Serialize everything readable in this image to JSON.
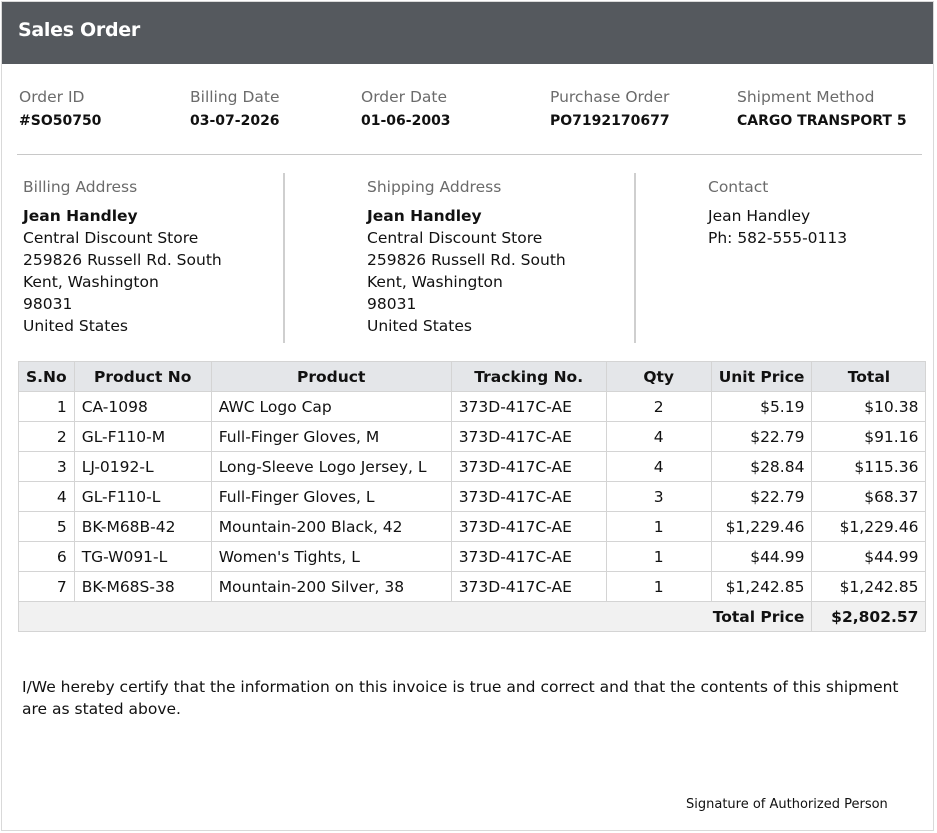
{
  "header": {
    "title": "Sales Order"
  },
  "order_info": [
    {
      "label": "Order ID",
      "value": "#SO50750"
    },
    {
      "label": "Billing Date",
      "value": "03-07-2026"
    },
    {
      "label": "Order Date",
      "value": "01-06-2003"
    },
    {
      "label": "Purchase Order",
      "value": "PO7192170677"
    },
    {
      "label": "Shipment Method",
      "value": "CARGO TRANSPORT 5"
    }
  ],
  "addresses": [
    {
      "label": "Billing Address",
      "lines": [
        "Jean Handley",
        "Central Discount Store",
        "259826 Russell Rd. South",
        "Kent, Washington",
        "98031",
        "United States"
      ]
    },
    {
      "label": "Shipping Address",
      "lines": [
        "Jean Handley",
        "Central Discount Store",
        "259826 Russell Rd. South",
        "Kent, Washington",
        "98031",
        "United States"
      ]
    },
    {
      "label": "Contact",
      "lines": [
        "Jean Handley",
        "Ph: 582-555-0113"
      ]
    }
  ],
  "table": {
    "columns": [
      "S.No",
      "Product No",
      "Product",
      "Tracking No.",
      "Qty",
      "Unit Price",
      "Total"
    ],
    "rows": [
      [
        "1",
        "CA-1098",
        "AWC Logo Cap",
        "373D-417C-AE",
        "2",
        "$5.19",
        "$10.38"
      ],
      [
        "2",
        "GL-F110-M",
        "Full-Finger Gloves, M",
        "373D-417C-AE",
        "4",
        "$22.79",
        "$91.16"
      ],
      [
        "3",
        "LJ-0192-L",
        "Long-Sleeve Logo Jersey, L",
        "373D-417C-AE",
        "4",
        "$28.84",
        "$115.36"
      ],
      [
        "4",
        "GL-F110-L",
        "Full-Finger Gloves, L",
        "373D-417C-AE",
        "3",
        "$22.79",
        "$68.37"
      ],
      [
        "5",
        "BK-M68B-42",
        "Mountain-200 Black, 42",
        "373D-417C-AE",
        "1",
        "$1,229.46",
        "$1,229.46"
      ],
      [
        "6",
        "TG-W091-L",
        "Women's Tights, L",
        "373D-417C-AE",
        "1",
        "$44.99",
        "$44.99"
      ],
      [
        "7",
        "BK-M68S-38",
        "Mountain-200 Silver, 38",
        "373D-417C-AE",
        "1",
        "$1,242.85",
        "$1,242.85"
      ]
    ],
    "total": {
      "label": "Total Price",
      "value": "$2,802.57"
    }
  },
  "footer": {
    "certification": "I/We hereby certify that the information on this invoice is true and correct and that the contents of this shipment are as stated above.",
    "signature": "Signature of Authorized Person"
  }
}
